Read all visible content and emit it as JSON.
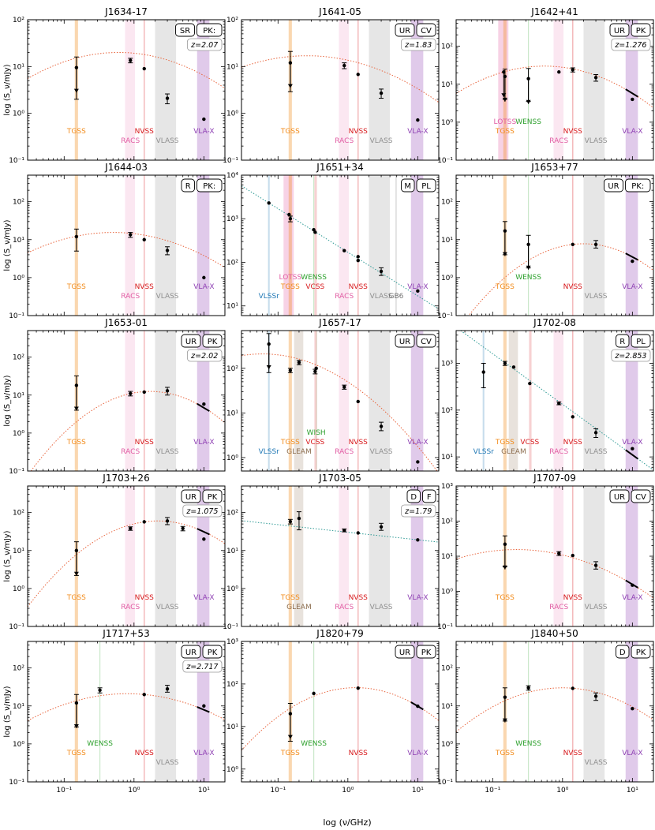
{
  "figure": {
    "xlabel": "log (ν/GHz)",
    "ylabel": "log (S_ν/mJy)",
    "x_range_ghz": [
      0.03,
      20
    ],
    "x_ticks": [
      {
        "v": 0.1,
        "label": "10⁻¹"
      },
      {
        "v": 1,
        "label": "10⁰"
      },
      {
        "v": 10,
        "label": "10¹"
      }
    ]
  },
  "survey_colors": {
    "TGSS": "#f28c1c",
    "RACS": "#e15ca3",
    "NVSS": "#d7191c",
    "VLASS": "#8f8f8f",
    "VLA-X": "#8e3fb3",
    "LOTSS": "#e15ca3",
    "WENSS": "#2ca02c",
    "VCSS": "#d7191c",
    "GB6": "#6f6f6f",
    "VLSSr": "#1f77b4",
    "GLEAM": "#8c6d4f",
    "WISH": "#2ca02c"
  },
  "chart_data": [
    {
      "title": "J1634-17",
      "type": "scatter",
      "badges": [
        "SR",
        "PK:"
      ],
      "redshift": "z=2.07",
      "ylim": [
        0.1,
        100
      ],
      "bands": [
        "TGSS",
        "RACS",
        "NVSS",
        "VLASS",
        "VLA-X"
      ],
      "points": [
        {
          "x": 0.15,
          "y": 9.5,
          "err": [
            2.0,
            16
          ],
          "ul": true
        },
        {
          "x": 0.888,
          "y": 13.5,
          "err": [
            12,
            15
          ]
        },
        {
          "x": 1.4,
          "y": 9.0
        },
        {
          "x": 3.0,
          "y": 2.1,
          "err": [
            1.6,
            2.6
          ]
        },
        {
          "x": 10,
          "y": 0.75
        }
      ],
      "fit": {
        "type": "curve",
        "peak_x": 0.6,
        "peak_y": 20,
        "a": 0.33
      },
      "fit_color": "#e8643c",
      "slope_seg": null
    },
    {
      "title": "J1641-05",
      "type": "scatter",
      "badges": [
        "UR",
        "CV"
      ],
      "redshift": "z=1.83",
      "ylim": [
        0.1,
        100
      ],
      "bands": [
        "TGSS",
        "RACS",
        "NVSS",
        "VLASS",
        "VLA-X"
      ],
      "points": [
        {
          "x": 0.15,
          "y": 12,
          "err": [
            2.9,
            21
          ],
          "ul": true
        },
        {
          "x": 0.888,
          "y": 10.5,
          "err": [
            9,
            12
          ]
        },
        {
          "x": 1.4,
          "y": 6.8
        },
        {
          "x": 3.0,
          "y": 2.7,
          "err": [
            2.1,
            3.3
          ]
        },
        {
          "x": 10,
          "y": 0.72
        }
      ],
      "fit": {
        "type": "curve",
        "peak_x": 0.26,
        "peak_y": 17,
        "a": 0.28
      },
      "fit_color": "#e8643c",
      "slope_seg": null
    },
    {
      "title": "J1642+41",
      "type": "scatter",
      "badges": [
        "UR",
        "PK"
      ],
      "redshift": "z=1.276",
      "ylim": [
        0.1,
        500
      ],
      "bands": [
        "LOTSS",
        "TGSS",
        "WENSS",
        "RACS",
        "NVSS",
        "VLASS",
        "VLA-X"
      ],
      "points": [
        {
          "x": 0.144,
          "y": 21,
          "ul": true
        },
        {
          "x": 0.15,
          "y": 16,
          "err": [
            4,
            25
          ],
          "ul": true
        },
        {
          "x": 0.325,
          "y": 14,
          "err": [
            3.5,
            26
          ],
          "ul": true
        },
        {
          "x": 0.888,
          "y": 21
        },
        {
          "x": 1.4,
          "y": 24,
          "err": [
            21,
            27
          ]
        },
        {
          "x": 3.0,
          "y": 15,
          "err": [
            12,
            18
          ]
        },
        {
          "x": 10,
          "y": 4.0
        }
      ],
      "fit": {
        "type": "curve",
        "peak_x": 0.55,
        "peak_y": 30,
        "a": 0.45
      },
      "fit_color": "#e8643c",
      "slope_seg": {
        "x1": 8,
        "x2": 12
      }
    },
    {
      "title": "J1644-03",
      "type": "scatter",
      "badges": [
        "R",
        "PK:"
      ],
      "redshift": "",
      "ylim": [
        0.1,
        500
      ],
      "bands": [
        "TGSS",
        "RACS",
        "NVSS",
        "VLASS",
        "VLA-X"
      ],
      "points": [
        {
          "x": 0.15,
          "y": 12,
          "err": [
            5,
            19
          ]
        },
        {
          "x": 0.888,
          "y": 13.5,
          "err": [
            11.5,
            15.5
          ]
        },
        {
          "x": 1.4,
          "y": 10
        },
        {
          "x": 3.0,
          "y": 5.2,
          "err": [
            4,
            6.5
          ]
        },
        {
          "x": 10,
          "y": 1.0
        }
      ],
      "fit": {
        "type": "curve",
        "peak_x": 0.5,
        "peak_y": 15.5,
        "a": 0.36
      },
      "fit_color": "#e8643c",
      "slope_seg": null
    },
    {
      "title": "J1651+34",
      "type": "scatter",
      "badges": [
        "M",
        "PL"
      ],
      "redshift": "",
      "ylim": [
        6,
        10000
      ],
      "bands": [
        "VLSSr",
        "LOTSS",
        "TGSS",
        "WENSS",
        "VCSS",
        "RACS",
        "NVSS",
        "VLASS",
        "GB6",
        "VLA-X"
      ],
      "points": [
        {
          "x": 0.074,
          "y": 2300
        },
        {
          "x": 0.144,
          "y": 1250
        },
        {
          "x": 0.15,
          "y": 1000,
          "err": [
            850,
            1150
          ]
        },
        {
          "x": 0.325,
          "y": 560
        },
        {
          "x": 0.34,
          "y": 490
        },
        {
          "x": 0.888,
          "y": 185
        },
        {
          "x": 1.4,
          "y": 135
        },
        {
          "x": 1.4,
          "y": 110
        },
        {
          "x": 3.0,
          "y": 62,
          "err": [
            50,
            75
          ]
        },
        {
          "x": 10,
          "y": 22
        }
      ],
      "fit": {
        "type": "powerlaw",
        "ref_x": 0.1,
        "ref_y": 1700,
        "alpha": -1.0
      },
      "fit_color": "#2e9a95",
      "slope_seg": null
    },
    {
      "title": "J1653+77",
      "type": "scatter",
      "badges": [
        "UR",
        "PK:"
      ],
      "redshift": "",
      "ylim": [
        0.1,
        500
      ],
      "bands": [
        "TGSS",
        "WENSS",
        "NVSS",
        "VLASS",
        "VLA-X"
      ],
      "points": [
        {
          "x": 0.15,
          "y": 17,
          "err": [
            4,
            30
          ],
          "ul": true
        },
        {
          "x": 0.325,
          "y": 7.5,
          "err": [
            1.8,
            13
          ],
          "ul": true
        },
        {
          "x": 1.4,
          "y": 7.5
        },
        {
          "x": 3.0,
          "y": 7.5,
          "err": [
            6,
            9.5
          ]
        },
        {
          "x": 10,
          "y": 2.7
        }
      ],
      "fit": {
        "type": "curve",
        "peak_x": 2.0,
        "peak_y": 7.8,
        "a": 0.7
      },
      "fit_color": "#e8643c",
      "slope_seg": {
        "x1": 8,
        "x2": 12
      }
    },
    {
      "title": "J1653-01",
      "type": "scatter",
      "badges": [
        "UR",
        "PK"
      ],
      "redshift": "z=2.02",
      "ylim": [
        0.1,
        500
      ],
      "bands": [
        "TGSS",
        "RACS",
        "NVSS",
        "VLASS",
        "VLA-X"
      ],
      "points": [
        {
          "x": 0.15,
          "y": 18,
          "err": [
            4,
            32
          ],
          "ul": true
        },
        {
          "x": 0.888,
          "y": 11,
          "err": [
            9.5,
            12.5
          ]
        },
        {
          "x": 1.4,
          "y": 12
        },
        {
          "x": 3.0,
          "y": 13,
          "err": [
            10,
            16
          ]
        },
        {
          "x": 10,
          "y": 5.8
        }
      ],
      "fit": {
        "type": "curve",
        "peak_x": 1.7,
        "peak_y": 12.5,
        "a": 0.72
      },
      "fit_color": "#e8643c",
      "slope_seg": {
        "x1": 8,
        "x2": 12
      }
    },
    {
      "title": "J1657-17",
      "type": "scatter",
      "badges": [
        "UR",
        "CV"
      ],
      "redshift": "",
      "ylim": [
        0.5,
        700
      ],
      "bands": [
        "VLSSr",
        "TGSS",
        "GLEAM",
        "WISH",
        "VCSS",
        "RACS",
        "NVSS",
        "VLASS",
        "VLA-X"
      ],
      "points": [
        {
          "x": 0.074,
          "y": 350,
          "err": [
            80,
            600
          ],
          "ul": true
        },
        {
          "x": 0.15,
          "y": 90,
          "err": [
            80,
            100
          ]
        },
        {
          "x": 0.2,
          "y": 135,
          "err": [
            120,
            150
          ]
        },
        {
          "x": 0.34,
          "y": 85,
          "err": [
            75,
            95
          ]
        },
        {
          "x": 0.352,
          "y": 100
        },
        {
          "x": 0.888,
          "y": 38,
          "err": [
            34,
            42
          ]
        },
        {
          "x": 1.4,
          "y": 18
        },
        {
          "x": 3.0,
          "y": 5.0,
          "err": [
            4,
            6.2
          ]
        },
        {
          "x": 10,
          "y": 0.8
        }
      ],
      "fit": {
        "type": "curve",
        "peak_x": 0.06,
        "peak_y": 210,
        "a": 0.42
      },
      "fit_color": "#e8643c",
      "slope_seg": null
    },
    {
      "title": "J1702-08",
      "type": "scatter",
      "badges": [
        "R",
        "PL"
      ],
      "redshift": "z=2.853",
      "ylim": [
        5,
        5000
      ],
      "bands": [
        "VLSSr",
        "TGSS",
        "GLEAM",
        "VCSS",
        "RACS",
        "NVSS",
        "VLASS",
        "VLA-X"
      ],
      "points": [
        {
          "x": 0.074,
          "y": 650,
          "err": [
            300,
            1000
          ]
        },
        {
          "x": 0.15,
          "y": 1000,
          "err": [
            900,
            1100
          ]
        },
        {
          "x": 0.2,
          "y": 830
        },
        {
          "x": 0.34,
          "y": 370
        },
        {
          "x": 0.888,
          "y": 140,
          "err": [
            130,
            150
          ]
        },
        {
          "x": 1.4,
          "y": 72
        },
        {
          "x": 3.0,
          "y": 33,
          "err": [
            26,
            40
          ]
        },
        {
          "x": 10,
          "y": 15
        }
      ],
      "fit": {
        "type": "powerlaw",
        "ref_x": 0.1,
        "ref_y": 1600,
        "alpha": -1.08
      },
      "fit_color": "#2e9a95",
      "slope_seg": {
        "x1": 8,
        "x2": 12
      }
    },
    {
      "title": "J1703+26",
      "type": "scatter",
      "badges": [
        "UR",
        "PK"
      ],
      "redshift": "z=1.075",
      "ylim": [
        0.1,
        500
      ],
      "bands": [
        "TGSS",
        "RACS",
        "NVSS",
        "VLASS",
        "VLA-X"
      ],
      "points": [
        {
          "x": 0.15,
          "y": 10,
          "err": [
            2.2,
            17
          ],
          "ul": true
        },
        {
          "x": 0.888,
          "y": 38,
          "err": [
            34,
            42
          ]
        },
        {
          "x": 1.4,
          "y": 57
        },
        {
          "x": 3.0,
          "y": 60,
          "err": [
            48,
            74
          ]
        },
        {
          "x": 5.0,
          "y": 38,
          "err": [
            33,
            43
          ]
        },
        {
          "x": 10,
          "y": 20
        }
      ],
      "fit": {
        "type": "curve",
        "peak_x": 2.2,
        "peak_y": 60,
        "a": 0.65
      },
      "fit_color": "#e8643c",
      "slope_seg": {
        "x1": 8,
        "x2": 12
      }
    },
    {
      "title": "J1703-05",
      "type": "scatter",
      "badges": [
        "D",
        "F"
      ],
      "redshift": "z=1.79",
      "ylim": [
        0.1,
        500
      ],
      "bands": [
        "TGSS",
        "GLEAM",
        "RACS",
        "NVSS",
        "VLASS",
        "VLA-X"
      ],
      "points": [
        {
          "x": 0.15,
          "y": 58,
          "err": [
            50,
            66
          ]
        },
        {
          "x": 0.2,
          "y": 70,
          "err": [
            35,
            105
          ]
        },
        {
          "x": 0.888,
          "y": 34,
          "err": [
            31,
            37
          ]
        },
        {
          "x": 1.4,
          "y": 29
        },
        {
          "x": 3.0,
          "y": 42,
          "err": [
            34,
            52
          ]
        },
        {
          "x": 10,
          "y": 19
        }
      ],
      "fit": {
        "type": "powerlaw",
        "ref_x": 0.1,
        "ref_y": 48,
        "alpha": -0.2
      },
      "fit_color": "#2e9a95",
      "slope_seg": null
    },
    {
      "title": "J1707-09",
      "type": "scatter",
      "badges": [
        "UR",
        "CV"
      ],
      "redshift": "",
      "ylim": [
        0.1,
        1000
      ],
      "bands": [
        "TGSS",
        "RACS",
        "NVSS",
        "VLASS",
        "VLA-X"
      ],
      "points": [
        {
          "x": 0.15,
          "y": 22,
          "err": [
            5,
            38
          ],
          "ul": true
        },
        {
          "x": 0.888,
          "y": 12,
          "err": [
            10.5,
            13.5
          ]
        },
        {
          "x": 1.4,
          "y": 10.5
        },
        {
          "x": 3.0,
          "y": 5.5,
          "err": [
            4.3,
            7
          ]
        },
        {
          "x": 10,
          "y": 1.5
        }
      ],
      "fit": {
        "type": "curve",
        "peak_x": 0.22,
        "peak_y": 15.5,
        "a": 0.36
      },
      "fit_color": "#e8643c",
      "slope_seg": {
        "x1": 8,
        "x2": 12
      }
    },
    {
      "title": "J1717+53",
      "type": "scatter",
      "badges": [
        "UR",
        "PK"
      ],
      "redshift": "z=2.717",
      "ylim": [
        0.1,
        500
      ],
      "bands": [
        "TGSS",
        "WENSS",
        "NVSS",
        "VLASS",
        "VLA-X"
      ],
      "points": [
        {
          "x": 0.15,
          "y": 12,
          "err": [
            2.8,
            20
          ],
          "ul": true
        },
        {
          "x": 0.325,
          "y": 26,
          "err": [
            22,
            30
          ]
        },
        {
          "x": 1.4,
          "y": 20
        },
        {
          "x": 3.0,
          "y": 28,
          "err": [
            23,
            35
          ]
        },
        {
          "x": 10,
          "y": 10
        }
      ],
      "fit": {
        "type": "curve",
        "peak_x": 0.8,
        "peak_y": 21,
        "a": 0.35
      },
      "fit_color": "#e8643c",
      "slope_seg": {
        "x1": 8,
        "x2": 12
      }
    },
    {
      "title": "J1820+79",
      "type": "scatter",
      "badges": [
        "UR",
        "PK"
      ],
      "redshift": "",
      "ylim": [
        0.5,
        1000
      ],
      "bands": [
        "TGSS",
        "WENSS",
        "NVSS",
        "VLA-X"
      ],
      "points": [
        {
          "x": 0.15,
          "y": 20,
          "err": [
            4.5,
            35
          ],
          "ul": true
        },
        {
          "x": 0.325,
          "y": 60
        },
        {
          "x": 1.4,
          "y": 80
        },
        {
          "x": 10,
          "y": 30
        }
      ],
      "fit": {
        "type": "curve",
        "peak_x": 1.3,
        "peak_y": 82,
        "a": 0.55
      },
      "fit_color": "#e8643c",
      "slope_seg": {
        "x1": 8,
        "x2": 12
      }
    },
    {
      "title": "J1840+50",
      "type": "scatter",
      "badges": [
        "D",
        "PK"
      ],
      "redshift": "",
      "ylim": [
        0.1,
        500
      ],
      "bands": [
        "TGSS",
        "WENSS",
        "NVSS",
        "VLASS",
        "VLA-X"
      ],
      "points": [
        {
          "x": 0.15,
          "y": 17,
          "err": [
            4,
            30
          ],
          "ul": true
        },
        {
          "x": 0.325,
          "y": 30,
          "err": [
            26,
            34
          ]
        },
        {
          "x": 1.4,
          "y": 29
        },
        {
          "x": 3.0,
          "y": 18,
          "err": [
            14,
            22
          ]
        },
        {
          "x": 10,
          "y": 8.5
        }
      ],
      "fit": {
        "type": "curve",
        "peak_x": 1.0,
        "peak_y": 30,
        "a": 0.5
      },
      "fit_color": "#e8643c",
      "slope_seg": null
    }
  ]
}
